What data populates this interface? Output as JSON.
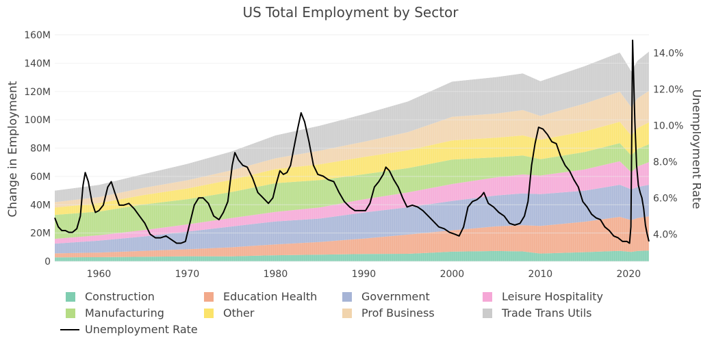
{
  "chart_data": {
    "type": "area",
    "title": "US Total Employment by Sector",
    "ylabel": "Change in Employment",
    "y2label": "Unemployment Rate",
    "xlim": [
      1955,
      2022.3
    ],
    "ylim": [
      0,
      160
    ],
    "y2lim": [
      2.5,
      15.0
    ],
    "x_ticks": [
      "1960",
      "1970",
      "1980",
      "1990",
      "2000",
      "2010",
      "2020"
    ],
    "y_ticks": [
      "0",
      "20M",
      "40M",
      "60M",
      "80M",
      "100M",
      "120M",
      "140M",
      "160M"
    ],
    "y2_ticks": [
      "4.0%",
      "6.0%",
      "8.0%",
      "10.0%",
      "12.0%",
      "14.0%"
    ],
    "grid": true,
    "legend_position": "bottom",
    "x": [
      1955,
      1960,
      1965,
      1970,
      1975,
      1980,
      1985,
      1990,
      1995,
      2000,
      2005,
      2008,
      2010,
      2015,
      2019,
      2020.3,
      2021,
      2022.3
    ],
    "series": [
      {
        "name": "Construction",
        "color": "#7fcdb0",
        "values": [
          2.8,
          2.9,
          3.2,
          3.6,
          3.5,
          4.3,
          4.7,
          5.2,
          5.3,
          6.8,
          7.3,
          7.0,
          5.5,
          6.5,
          7.4,
          6.6,
          7.3,
          7.6
        ]
      },
      {
        "name": "Education Health",
        "color": "#f2a98a",
        "values": [
          2.8,
          3.3,
          4.2,
          4.9,
          6.4,
          7.7,
          9.0,
          10.9,
          13.6,
          15.1,
          17.4,
          18.5,
          19.5,
          21.5,
          24.0,
          22.5,
          23.3,
          24.2
        ]
      },
      {
        "name": "Government",
        "color": "#a6b4d6",
        "values": [
          6.9,
          8.4,
          10.1,
          12.5,
          14.7,
          16.2,
          16.5,
          18.4,
          19.3,
          20.8,
          21.8,
          22.5,
          22.5,
          21.9,
          22.7,
          21.8,
          21.9,
          22.3
        ]
      },
      {
        "name": "Leisure Hospitality",
        "color": "#f5a7d6",
        "values": [
          3.4,
          3.8,
          4.5,
          5.1,
          6.0,
          6.7,
          7.9,
          9.3,
          10.5,
          11.9,
          12.8,
          13.4,
          13.1,
          15.0,
          16.6,
          12.0,
          14.5,
          16.0
        ]
      },
      {
        "name": "Manufacturing",
        "color": "#b5dc84",
        "values": [
          16.9,
          16.8,
          18.1,
          17.8,
          18.3,
          20.3,
          19.3,
          17.7,
          17.2,
          17.3,
          14.2,
          13.4,
          11.5,
          12.3,
          12.8,
          11.9,
          12.3,
          12.6
        ]
      },
      {
        "name": "Other",
        "color": "#fbe36a",
        "values": [
          5.2,
          5.9,
          6.7,
          7.6,
          8.7,
          10.0,
          11.1,
          12.2,
          12.6,
          13.5,
          13.9,
          14.2,
          13.9,
          14.6,
          15.1,
          14.0,
          14.8,
          15.5
        ]
      },
      {
        "name": "Prof Business",
        "color": "#f1d4ad",
        "values": [
          3.8,
          4.3,
          5.0,
          5.8,
          6.7,
          7.6,
          9.7,
          10.8,
          12.8,
          16.7,
          17.0,
          17.9,
          16.7,
          19.6,
          21.3,
          20.1,
          21.0,
          22.3
        ]
      },
      {
        "name": "Trade Trans Utils",
        "color": "#cbcbcb",
        "values": [
          8.2,
          8.6,
          9.8,
          11.6,
          13.3,
          16.2,
          17.6,
          19.5,
          21.7,
          24.9,
          25.8,
          25.9,
          24.6,
          26.5,
          27.7,
          25.4,
          26.7,
          27.7
        ]
      }
    ],
    "unemployment": {
      "name": "Unemployment Rate",
      "color": "#000000",
      "x": [
        1955,
        1955.4,
        1955.8,
        1956.2,
        1956.6,
        1957,
        1957.5,
        1957.9,
        1958.2,
        1958.45,
        1958.8,
        1959.2,
        1959.6,
        1960,
        1960.5,
        1961,
        1961.4,
        1961.8,
        1962.3,
        1962.8,
        1963.4,
        1964,
        1964.6,
        1965.2,
        1965.8,
        1966.4,
        1967,
        1967.6,
        1968.2,
        1968.8,
        1969.3,
        1969.8,
        1970.3,
        1970.8,
        1971.3,
        1971.8,
        1972.4,
        1973,
        1973.6,
        1974.1,
        1974.6,
        1975.1,
        1975.4,
        1975.8,
        1976.3,
        1976.8,
        1977.4,
        1978,
        1978.6,
        1979.2,
        1979.7,
        1980.1,
        1980.5,
        1980.9,
        1981.3,
        1981.7,
        1982.1,
        1982.5,
        1982.9,
        1983.3,
        1983.8,
        1984.3,
        1984.8,
        1985.4,
        1986,
        1986.6,
        1987.2,
        1987.8,
        1988.4,
        1989,
        1989.6,
        1990.2,
        1990.7,
        1991.2,
        1991.7,
        1992.2,
        1992.5,
        1992.9,
        1993.4,
        1993.9,
        1994.4,
        1994.9,
        1995.5,
        1996.1,
        1996.7,
        1997.3,
        1997.9,
        1998.5,
        1999.1,
        1999.7,
        2000.3,
        2000.8,
        2001.3,
        2001.8,
        2002.3,
        2002.8,
        2003.3,
        2003.6,
        2004.1,
        2004.7,
        2005.3,
        2005.9,
        2006.5,
        2007.1,
        2007.7,
        2008.2,
        2008.6,
        2009,
        2009.4,
        2009.8,
        2010.3,
        2010.8,
        2011.3,
        2011.8,
        2012.3,
        2012.8,
        2013.3,
        2013.8,
        2014.3,
        2014.8,
        2015.3,
        2015.8,
        2016.3,
        2016.8,
        2017.3,
        2017.8,
        2018.3,
        2018.8,
        2019.3,
        2019.8,
        2020.1,
        2020.25,
        2020.45,
        2020.7,
        2020.9,
        2021.1,
        2021.3,
        2021.5,
        2021.7,
        2021.9,
        2022.1,
        2022.3
      ],
      "values": [
        4.9,
        4.4,
        4.2,
        4.2,
        4.1,
        4.1,
        4.3,
        5.0,
        6.7,
        7.4,
        6.9,
        5.8,
        5.2,
        5.3,
        5.6,
        6.6,
        6.9,
        6.3,
        5.6,
        5.6,
        5.7,
        5.4,
        5.0,
        4.6,
        4.0,
        3.8,
        3.8,
        3.9,
        3.7,
        3.5,
        3.5,
        3.6,
        4.6,
        5.6,
        6.0,
        6.0,
        5.7,
        5.0,
        4.8,
        5.2,
        5.8,
        7.8,
        8.5,
        8.1,
        7.8,
        7.7,
        7.1,
        6.3,
        6.0,
        5.7,
        6.0,
        6.8,
        7.5,
        7.3,
        7.4,
        7.8,
        8.8,
        9.8,
        10.7,
        10.2,
        9.1,
        7.8,
        7.3,
        7.2,
        7.0,
        6.9,
        6.3,
        5.8,
        5.5,
        5.3,
        5.3,
        5.3,
        5.7,
        6.6,
        6.9,
        7.3,
        7.7,
        7.5,
        7.0,
        6.6,
        6.0,
        5.5,
        5.6,
        5.5,
        5.3,
        5.0,
        4.7,
        4.4,
        4.3,
        4.1,
        4.0,
        3.9,
        4.4,
        5.5,
        5.8,
        5.9,
        6.1,
        6.3,
        5.7,
        5.5,
        5.2,
        5.0,
        4.6,
        4.5,
        4.6,
        5.0,
        5.8,
        7.8,
        9.0,
        9.9,
        9.8,
        9.5,
        9.1,
        9.0,
        8.3,
        7.8,
        7.5,
        7.0,
        6.6,
        5.8,
        5.5,
        5.1,
        4.9,
        4.8,
        4.4,
        4.2,
        3.9,
        3.8,
        3.6,
        3.6,
        3.5,
        4.4,
        14.7,
        10.2,
        7.8,
        6.7,
        6.3,
        6.0,
        5.4,
        4.5,
        4.0,
        3.6
      ]
    }
  }
}
